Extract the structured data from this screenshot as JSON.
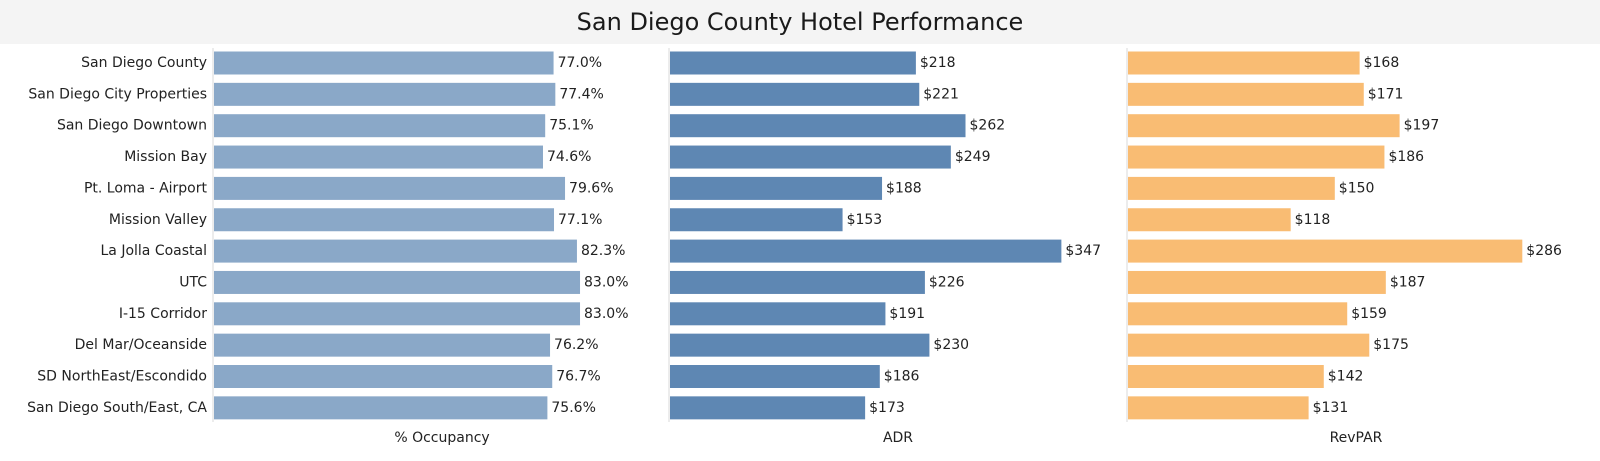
{
  "chart_data": {
    "type": "bar",
    "orientation": "horizontal",
    "title": "San Diego County Hotel Performance",
    "categories": [
      "San Diego County",
      "San Diego City Properties",
      "San Diego Downtown",
      "Mission Bay",
      "Pt. Loma - Airport",
      "Mission Valley",
      "La Jolla Coastal",
      "UTC",
      "I-15 Corridor",
      "Del Mar/Oceanside",
      "SD NorthEast/Escondido",
      "San Diego South/East, CA"
    ],
    "series": [
      {
        "name": "% Occupancy",
        "color": "#8aa8c8",
        "values": [
          77.0,
          77.4,
          75.1,
          74.6,
          79.6,
          77.1,
          82.3,
          83.0,
          83.0,
          76.2,
          76.7,
          75.6
        ],
        "labels": [
          "77.0%",
          "77.4%",
          "75.1%",
          "74.6%",
          "79.6%",
          "77.1%",
          "82.3%",
          "83.0%",
          "83.0%",
          "76.2%",
          "76.7%",
          "75.6%"
        ]
      },
      {
        "name": "ADR",
        "color": "#5e87b3",
        "values": [
          218,
          221,
          262,
          249,
          188,
          153,
          347,
          226,
          191,
          230,
          186,
          173
        ],
        "labels": [
          "$218",
          "$221",
          "$262",
          "$249",
          "$188",
          "$153",
          "$347",
          "$226",
          "$191",
          "$230",
          "$186",
          "$173"
        ]
      },
      {
        "name": "RevPAR",
        "color": "#f9bc73",
        "values": [
          168,
          171,
          197,
          186,
          150,
          118,
          286,
          187,
          159,
          175,
          142,
          131
        ],
        "labels": [
          "$168",
          "$171",
          "$197",
          "$186",
          "$150",
          "$118",
          "$286",
          "$187",
          "$159",
          "$175",
          "$142",
          "$131"
        ]
      }
    ],
    "grid": false,
    "legend": "none"
  }
}
